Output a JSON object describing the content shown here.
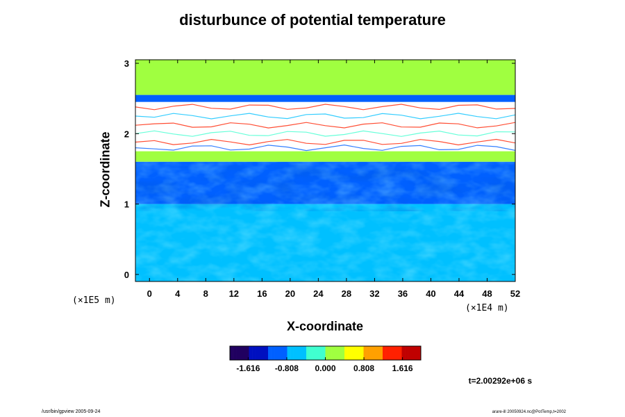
{
  "chart_data": {
    "type": "heatmap",
    "title": "disturbunce of potential temperature",
    "xlabel": "X-coordinate",
    "ylabel": "Z-coordinate",
    "x_scale_note": "(×1E4 m)",
    "y_scale_note": "(×1E5 m)",
    "xlim": [
      -2,
      52
    ],
    "ylim": [
      -0.1,
      3.05
    ],
    "x_ticks": [
      "0",
      "4",
      "8",
      "12",
      "16",
      "20",
      "24",
      "28",
      "32",
      "36",
      "40",
      "44",
      "48",
      "52"
    ],
    "y_ticks": [
      "0",
      "1",
      "2",
      "3"
    ],
    "x_tick_values": [
      0,
      4,
      8,
      12,
      16,
      20,
      24,
      28,
      32,
      36,
      40,
      44,
      48,
      52
    ],
    "y_tick_values": [
      0,
      1,
      2,
      3
    ],
    "colorbar": {
      "min": -2.0,
      "max": 2.0,
      "ticks": [
        "-1.616",
        "-0.808",
        "0.000",
        "0.808",
        "1.616"
      ],
      "tick_values": [
        -1.616,
        -0.808,
        0.0,
        0.808,
        1.616
      ],
      "colormap": [
        "#200060",
        "#0010c0",
        "#0060ff",
        "#00c0ff",
        "#40ffd0",
        "#a0ff40",
        "#ffff00",
        "#ffa000",
        "#ff2000",
        "#c00000"
      ]
    },
    "layers": [
      {
        "z_range": [
          2.55,
          3.05
        ],
        "value": 0.25
      },
      {
        "z_range": [
          2.45,
          2.55
        ],
        "value": -0.9
      },
      {
        "z_range": [
          1.75,
          2.45
        ],
        "value": "out of range (white) with thin high-value filaments"
      },
      {
        "z_range": [
          1.6,
          1.75
        ],
        "value": 0.3
      },
      {
        "z_range": [
          1.0,
          1.6
        ],
        "value": -1.1
      },
      {
        "z_range": [
          -0.1,
          1.0
        ],
        "value": -0.5
      }
    ],
    "time_label": "t=2.00292e+06 s"
  },
  "footer": {
    "left": "/usr/bin/gpview 2005-09-24",
    "right": "arare-ill 20050924.nc@PotTemp,t=2002"
  }
}
